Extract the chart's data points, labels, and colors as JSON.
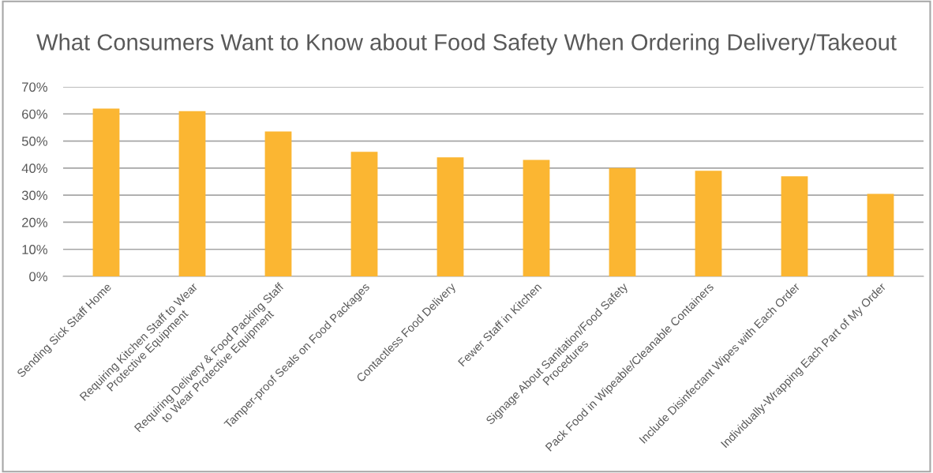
{
  "chart_data": {
    "type": "bar",
    "title": "What Consumers Want to Know about Food Safety When Ordering Delivery/Takeout",
    "categories": [
      "Sending Sick Staff Home",
      "Requiring Kitchen Staff to Wear\nProtective Equipment",
      "Requiring Delivery & Food Packing Staff\nto Wear Protective Equipment",
      "Tamper-proof Seals on Food Packages",
      "Contactless Food Delivery",
      "Fewer Staff in Kitchen",
      "Signage About Sanitation/Food Safety\nProcedures",
      "Pack Food in Wipeable/Cleanable Containers",
      "Include Disinfectant Wipes with Each Order",
      "Individually-Wrapping Each Part of My Order"
    ],
    "values": [
      62,
      61,
      53.5,
      46,
      44,
      43,
      40,
      39,
      37,
      30.5
    ],
    "color": "#fbb632",
    "ylim": [
      0,
      70
    ],
    "yticks": [
      {
        "value": 0,
        "label": "0%"
      },
      {
        "value": 10,
        "label": "10%"
      },
      {
        "value": 20,
        "label": "20%"
      },
      {
        "value": 30,
        "label": "30%"
      },
      {
        "value": 40,
        "label": "40%"
      },
      {
        "value": 50,
        "label": "50%"
      },
      {
        "value": 60,
        "label": "60%"
      },
      {
        "value": 70,
        "label": "70%"
      }
    ],
    "grid": "y"
  }
}
